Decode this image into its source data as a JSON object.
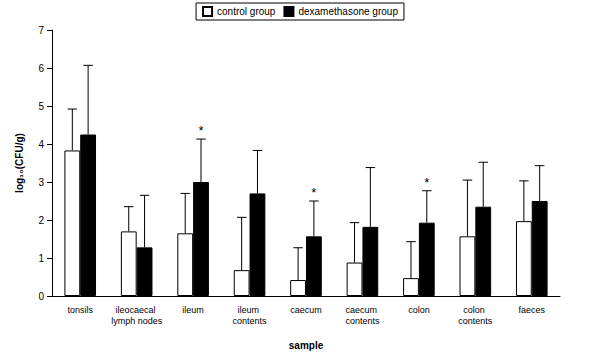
{
  "chart_data": {
    "type": "bar",
    "x_label": "sample",
    "y_label": "log₁₀(CFU/g)",
    "categories": [
      "tonsils",
      "ileocaecal lymph nodes",
      "ileum",
      "ileum contents",
      "caecum",
      "caecum contents",
      "colon",
      "colon contents",
      "faeces"
    ],
    "series": [
      {
        "name": "control group",
        "color": "#ffffff",
        "values": [
          3.83,
          1.7,
          1.65,
          0.68,
          0.42,
          0.88,
          0.47,
          1.57,
          1.97
        ],
        "errors": [
          1.09,
          0.65,
          1.05,
          1.39,
          0.85,
          1.05,
          0.96,
          1.48,
          1.06
        ]
      },
      {
        "name": "dexamethasone group",
        "color": "#000000",
        "values": [
          4.25,
          1.28,
          3.0,
          2.7,
          1.57,
          1.82,
          1.93,
          2.35,
          2.5
        ],
        "errors": [
          1.82,
          1.37,
          1.13,
          1.13,
          0.93,
          1.56,
          0.84,
          1.17,
          0.93
        ]
      }
    ],
    "annotations": [
      {
        "category": "ileum",
        "series": "dexamethasone group",
        "text": "*"
      },
      {
        "category": "caecum",
        "series": "dexamethasone group",
        "text": "*"
      },
      {
        "category": "colon",
        "series": "dexamethasone group",
        "text": "*"
      }
    ],
    "ylim": [
      0,
      7
    ],
    "yticks": [
      0,
      1,
      2,
      3,
      4,
      5,
      6,
      7
    ],
    "grid": false,
    "legend": "top"
  }
}
